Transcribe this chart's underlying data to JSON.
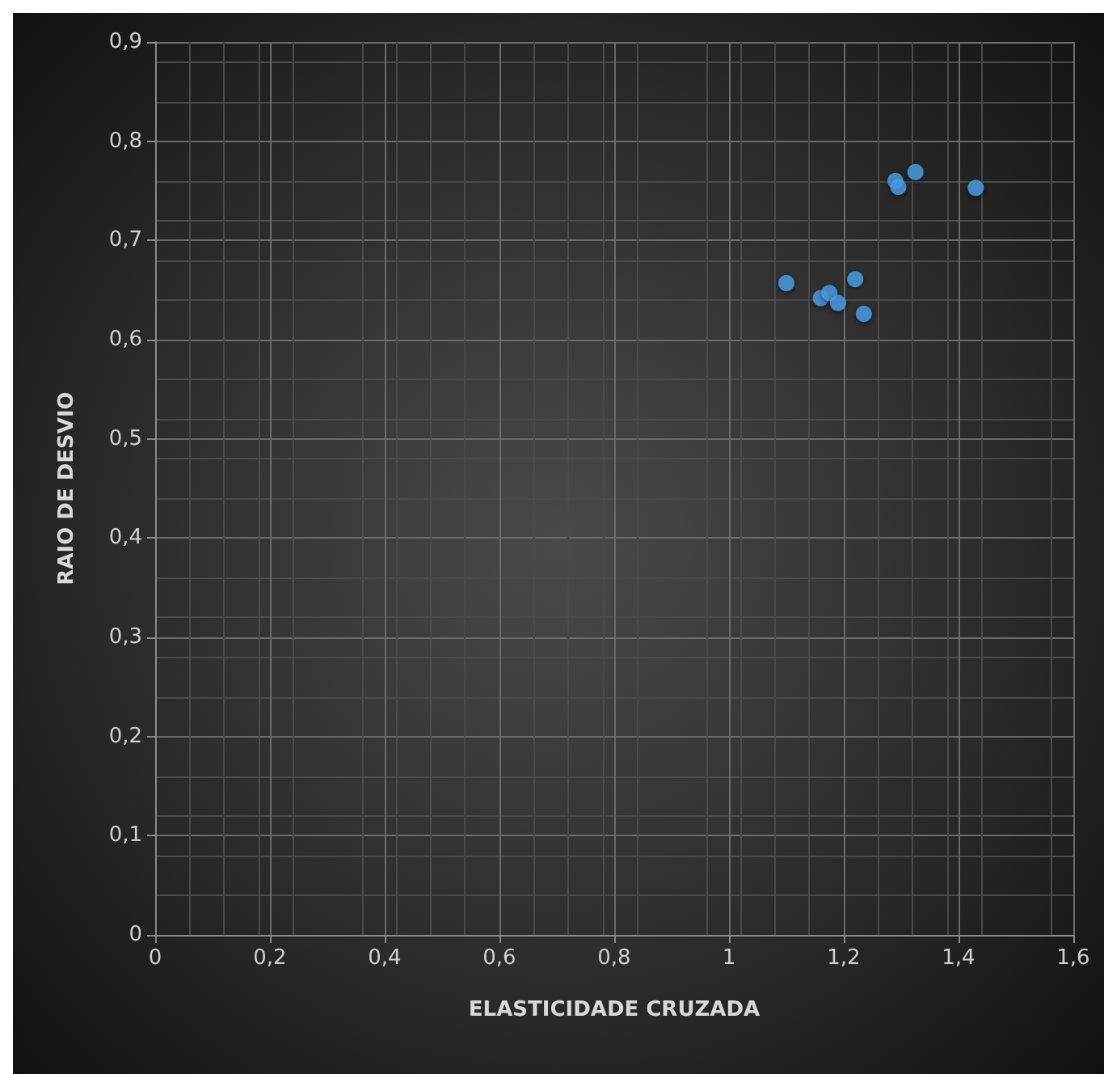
{
  "chart_data": {
    "type": "scatter",
    "xlabel": "ELASTICIDADE CRUZADA",
    "ylabel": "RAIO DE DESVIO",
    "x": [
      1.1,
      1.16,
      1.175,
      1.19,
      1.22,
      1.235,
      1.29,
      1.295,
      1.325,
      1.43
    ],
    "series": [
      {
        "color": "#4a9fe6",
        "values": [
          0.657,
          0.642,
          0.647,
          0.637,
          0.661,
          0.626,
          0.76,
          0.754,
          0.769,
          0.753
        ]
      }
    ],
    "xlim": [
      0,
      1.6
    ],
    "xticks": [
      0,
      {
        "value": 0.2,
        "label": "0,2"
      },
      {
        "value": 0.4,
        "label": "0,4"
      },
      {
        "value": 0.6,
        "label": "0,6"
      },
      {
        "value": 0.8,
        "label": "0,8"
      },
      1,
      {
        "value": 1.2,
        "label": "1,2"
      },
      {
        "value": 1.4,
        "label": "1,4"
      },
      {
        "value": 1.6,
        "label": "1,6"
      }
    ],
    "ylim": [
      0,
      0.9
    ],
    "yticks": [
      0,
      {
        "value": 0.1,
        "label": "0,1"
      },
      {
        "value": 0.2,
        "label": "0,2"
      },
      {
        "value": 0.3,
        "label": "0,3"
      },
      {
        "value": 0.4,
        "label": "0,4"
      },
      {
        "value": 0.5,
        "label": "0,5"
      },
      {
        "value": 0.6,
        "label": "0,6"
      },
      {
        "value": 0.7,
        "label": "0,7"
      },
      {
        "value": 0.8,
        "label": "0,8"
      },
      {
        "value": 0.9,
        "label": "0,9"
      }
    ],
    "grid": true,
    "marker": "circle"
  }
}
